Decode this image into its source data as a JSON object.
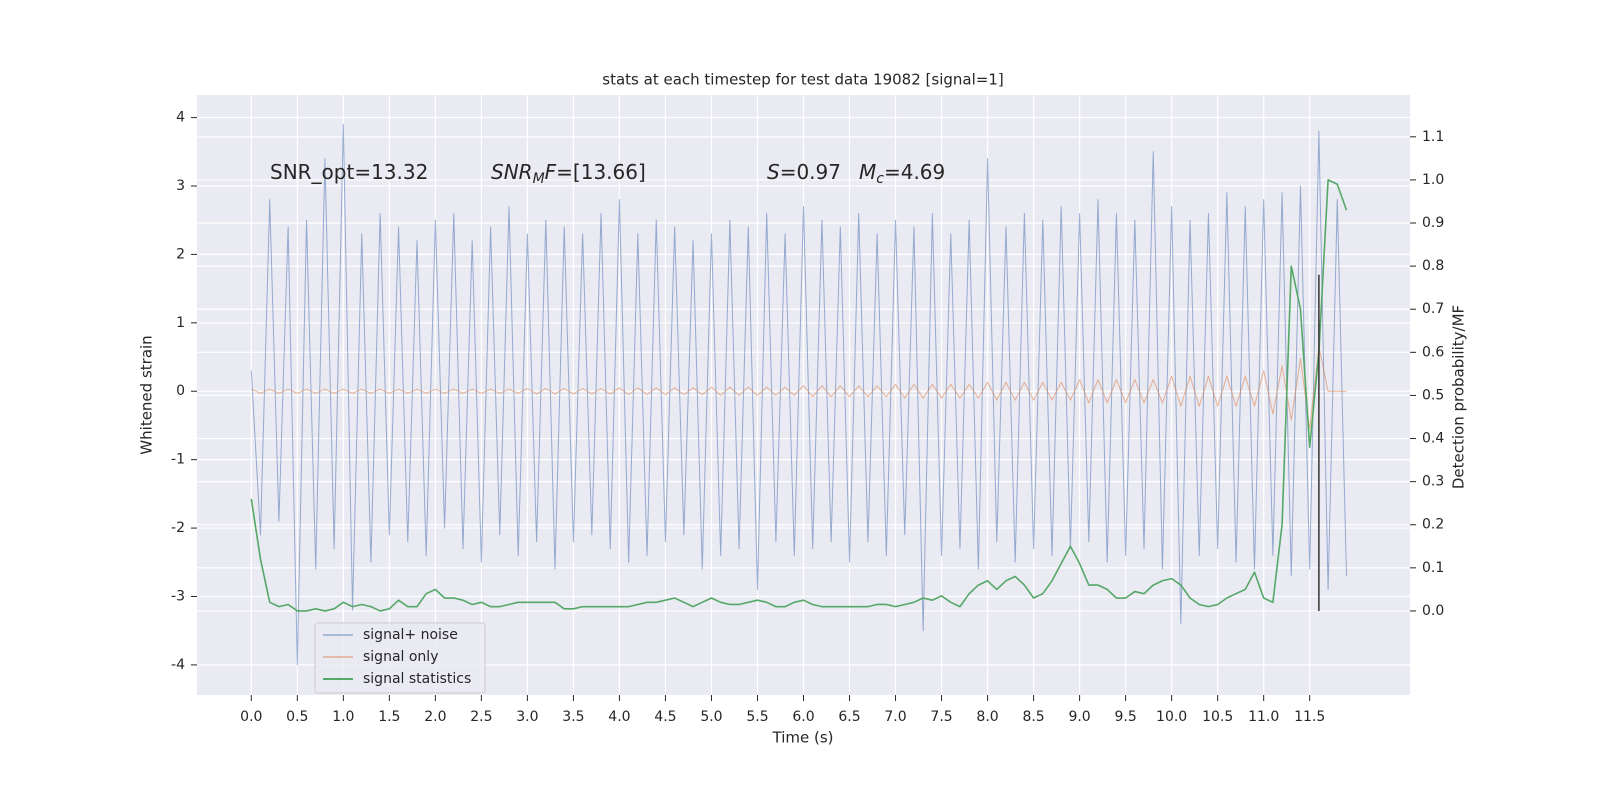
{
  "chart_data": {
    "type": "line",
    "title": "stats at each timestep for test data 19082 [signal=1]",
    "xlabel": "Time (s)",
    "ylabel": "Whitened strain",
    "y2label": "Detection probability/MF",
    "annotations": [
      [
        "SNR_opt=13.32"
      ],
      [
        "SNR",
        "M",
        "F",
        "=[13.66]"
      ],
      [
        "S",
        "=0.97"
      ],
      [
        "M",
        "c",
        "=4.69"
      ]
    ],
    "xlim": [
      -0.59,
      12.59
    ],
    "ylim": [
      -4.44,
      4.33
    ],
    "y2lim": [
      -0.195,
      1.197
    ],
    "xticks": [
      {
        "value": 0,
        "label": "0.0"
      },
      0.5,
      {
        "value": 1,
        "label": "1.0"
      },
      1.5,
      {
        "value": 2,
        "label": "2.0"
      },
      2.5,
      {
        "value": 3,
        "label": "3.0"
      },
      3.5,
      {
        "value": 4,
        "label": "4.0"
      },
      4.5,
      {
        "value": 5,
        "label": "5.0"
      },
      5.5,
      {
        "value": 6,
        "label": "6.0"
      },
      6.5,
      {
        "value": 7,
        "label": "7.0"
      },
      7.5,
      {
        "value": 8,
        "label": "8.0"
      },
      8.5,
      {
        "value": 9,
        "label": "9.0"
      },
      9.5,
      {
        "value": 10,
        "label": "10.0"
      },
      10.5,
      {
        "value": 11,
        "label": "11.0"
      },
      11.5
    ],
    "yticks": [
      -4,
      -3,
      -2,
      -1,
      0,
      1,
      2,
      3,
      4
    ],
    "y2ticks": [
      {
        "value": 0,
        "label": "0.0"
      },
      0.1,
      0.2,
      0.3,
      0.4,
      0.5,
      0.6,
      0.7,
      0.8,
      0.9,
      {
        "value": 1,
        "label": "1.0"
      },
      1.1
    ],
    "grid": true,
    "legend": "lower left",
    "x": [
      0,
      0.1,
      0.2,
      0.3,
      0.4,
      0.5,
      0.6,
      0.7,
      0.8,
      0.9,
      1,
      1.1,
      1.2,
      1.3,
      1.4,
      1.5,
      1.6,
      1.7,
      1.8,
      1.9,
      2,
      2.1,
      2.2,
      2.3,
      2.4,
      2.5,
      2.6,
      2.7,
      2.8,
      2.9,
      3,
      3.1,
      3.2,
      3.3,
      3.4,
      3.5,
      3.6,
      3.7,
      3.8,
      3.9,
      4,
      4.1,
      4.2,
      4.3,
      4.4,
      4.5,
      4.6,
      4.7,
      4.8,
      4.9,
      5,
      5.1,
      5.2,
      5.3,
      5.4,
      5.5,
      5.6,
      5.7,
      5.8,
      5.9,
      6,
      6.1,
      6.2,
      6.3,
      6.4,
      6.5,
      6.6,
      6.7,
      6.8,
      6.9,
      7,
      7.1,
      7.2,
      7.3,
      7.4,
      7.5,
      7.6,
      7.7,
      7.8,
      7.9,
      8,
      8.1,
      8.2,
      8.3,
      8.4,
      8.5,
      8.6,
      8.7,
      8.8,
      8.9,
      9,
      9.1,
      9.2,
      9.3,
      9.4,
      9.5,
      9.6,
      9.7,
      9.8,
      9.9,
      10,
      10.1,
      10.2,
      10.3,
      10.4,
      10.5,
      10.6,
      10.7,
      10.8,
      10.9,
      11,
      11.1,
      11.2,
      11.3,
      11.4,
      11.5,
      11.6,
      11.7,
      11.8,
      11.9
    ],
    "series": [
      {
        "name": "signal+ noise",
        "color": "#4c72b0",
        "values": [
          0.3,
          -2.1,
          2.8,
          -1.9,
          2.4,
          -4.0,
          2.5,
          -2.6,
          3.4,
          -2.3,
          3.9,
          -3.2,
          2.3,
          -2.5,
          2.6,
          -2.1,
          2.4,
          -2.2,
          2.2,
          -2.4,
          2.5,
          -2.0,
          2.6,
          -2.3,
          2.2,
          -2.5,
          2.4,
          -2.1,
          2.7,
          -2.4,
          2.3,
          -2.2,
          2.5,
          -2.6,
          2.4,
          -2.2,
          2.3,
          -2.1,
          2.6,
          -2.3,
          2.8,
          -2.5,
          2.3,
          -2.4,
          2.5,
          -2.2,
          2.4,
          -2.1,
          2.2,
          -2.6,
          2.3,
          -2.4,
          2.5,
          -2.3,
          2.4,
          -2.9,
          2.6,
          -2.2,
          2.3,
          -2.4,
          2.7,
          -2.3,
          2.5,
          -2.2,
          2.4,
          -2.5,
          2.6,
          -2.2,
          2.3,
          -2.4,
          2.5,
          -2.1,
          2.4,
          -3.5,
          2.6,
          -2.4,
          2.3,
          -2.3,
          2.5,
          -2.6,
          3.4,
          -2.2,
          2.4,
          -2.5,
          2.6,
          -2.3,
          2.5,
          -2.4,
          2.7,
          -2.3,
          2.6,
          -2.2,
          2.8,
          -2.5,
          2.6,
          -2.4,
          2.5,
          -2.3,
          3.5,
          -2.6,
          2.7,
          -3.4,
          2.5,
          -2.4,
          2.6,
          -2.3,
          2.9,
          -2.5,
          2.7,
          -2.6,
          2.8,
          -2.4,
          2.9,
          -2.7,
          3.0,
          -2.6,
          3.8,
          -2.9,
          2.8,
          -2.7
        ]
      },
      {
        "name": "signal only",
        "color": "#dd8452",
        "values": [
          0.03,
          -0.03,
          0.03,
          -0.03,
          0.03,
          -0.03,
          0.03,
          -0.03,
          0.03,
          -0.03,
          0.03,
          -0.03,
          0.03,
          -0.03,
          0.03,
          -0.03,
          0.03,
          -0.03,
          0.03,
          -0.03,
          0.03,
          -0.03,
          0.03,
          -0.03,
          0.03,
          -0.03,
          0.03,
          -0.03,
          0.03,
          -0.03,
          0.04,
          -0.04,
          0.04,
          -0.04,
          0.04,
          -0.04,
          0.04,
          -0.04,
          0.04,
          -0.04,
          0.05,
          -0.05,
          0.05,
          -0.05,
          0.05,
          -0.05,
          0.05,
          -0.05,
          0.05,
          -0.05,
          0.06,
          -0.06,
          0.06,
          -0.06,
          0.06,
          -0.06,
          0.06,
          -0.06,
          0.06,
          -0.06,
          0.08,
          -0.08,
          0.08,
          -0.08,
          0.08,
          -0.08,
          0.08,
          -0.08,
          0.08,
          -0.08,
          0.1,
          -0.1,
          0.1,
          -0.1,
          0.1,
          -0.1,
          0.1,
          -0.1,
          0.1,
          -0.1,
          0.13,
          -0.13,
          0.13,
          -0.13,
          0.13,
          -0.13,
          0.13,
          -0.13,
          0.13,
          -0.13,
          0.17,
          -0.17,
          0.17,
          -0.17,
          0.17,
          -0.17,
          0.17,
          -0.17,
          0.17,
          -0.17,
          0.22,
          -0.22,
          0.22,
          -0.22,
          0.22,
          -0.22,
          0.22,
          -0.22,
          0.22,
          -0.22,
          0.3,
          -0.33,
          0.37,
          -0.42,
          0.48,
          -0.55,
          0.65,
          0,
          0,
          0
        ]
      },
      {
        "name": "signal statistics",
        "color": "#55a868",
        "axis": "y2",
        "values": [
          0.26,
          0.12,
          0.02,
          0.01,
          0.015,
          0.0,
          0.0,
          0.005,
          0.0,
          0.005,
          0.02,
          0.01,
          0.015,
          0.01,
          0.0,
          0.005,
          0.025,
          0.01,
          0.01,
          0.04,
          0.05,
          0.03,
          0.03,
          0.025,
          0.015,
          0.02,
          0.01,
          0.01,
          0.015,
          0.02,
          0.02,
          0.02,
          0.02,
          0.02,
          0.005,
          0.005,
          0.01,
          0.01,
          0.01,
          0.01,
          0.01,
          0.01,
          0.015,
          0.02,
          0.02,
          0.025,
          0.03,
          0.02,
          0.01,
          0.02,
          0.03,
          0.02,
          0.015,
          0.015,
          0.02,
          0.025,
          0.02,
          0.01,
          0.01,
          0.02,
          0.025,
          0.015,
          0.01,
          0.01,
          0.01,
          0.01,
          0.01,
          0.01,
          0.015,
          0.015,
          0.01,
          0.015,
          0.02,
          0.03,
          0.025,
          0.035,
          0.02,
          0.01,
          0.04,
          0.06,
          0.07,
          0.05,
          0.07,
          0.08,
          0.06,
          0.03,
          0.04,
          0.07,
          0.11,
          0.15,
          0.11,
          0.06,
          0.06,
          0.05,
          0.03,
          0.03,
          0.045,
          0.04,
          0.06,
          0.07,
          0.075,
          0.06,
          0.03,
          0.015,
          0.01,
          0.015,
          0.03,
          0.04,
          0.05,
          0.09,
          0.03,
          0.02,
          0.2,
          0.8,
          0.7,
          0.38,
          0.6,
          1.0,
          0.99,
          0.93
        ]
      }
    ],
    "vline": {
      "x": 11.6,
      "ymin": 0,
      "ymax": 0.78,
      "axis": "y2",
      "color": "#333333"
    }
  }
}
